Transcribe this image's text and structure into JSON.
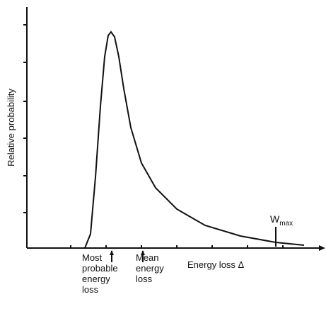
{
  "chart_data": {
    "type": "line",
    "ylabel": "Relative probability",
    "xlabel": "Energy loss Δ",
    "x": [
      82,
      90,
      97,
      104,
      110,
      115,
      119,
      124,
      130,
      137,
      147,
      162,
      182,
      212,
      252,
      302,
      352,
      392
    ],
    "series": [
      {
        "name": "Relative probability",
        "color": "#111111",
        "values": [
          0,
          20,
          100,
          200,
          270,
          300,
          305,
          298,
          270,
          225,
          170,
          120,
          85,
          55,
          32,
          17,
          8,
          4
        ]
      }
    ],
    "xlim": [
      0,
      422
    ],
    "ylim": [
      0,
      340
    ],
    "xticks": [
      62,
      112,
      162,
      212,
      262,
      312,
      362
    ],
    "yticks": [
      50,
      102,
      155,
      207,
      262,
      315
    ],
    "annotations": [
      {
        "lines": [
          "Most",
          "probable",
          "energy",
          "loss"
        ],
        "x": 120
      },
      {
        "lines": [
          "Mean",
          "energy",
          "loss"
        ],
        "x": 164
      },
      {
        "text": "W",
        "subscript": "max",
        "x": 352
      }
    ]
  }
}
